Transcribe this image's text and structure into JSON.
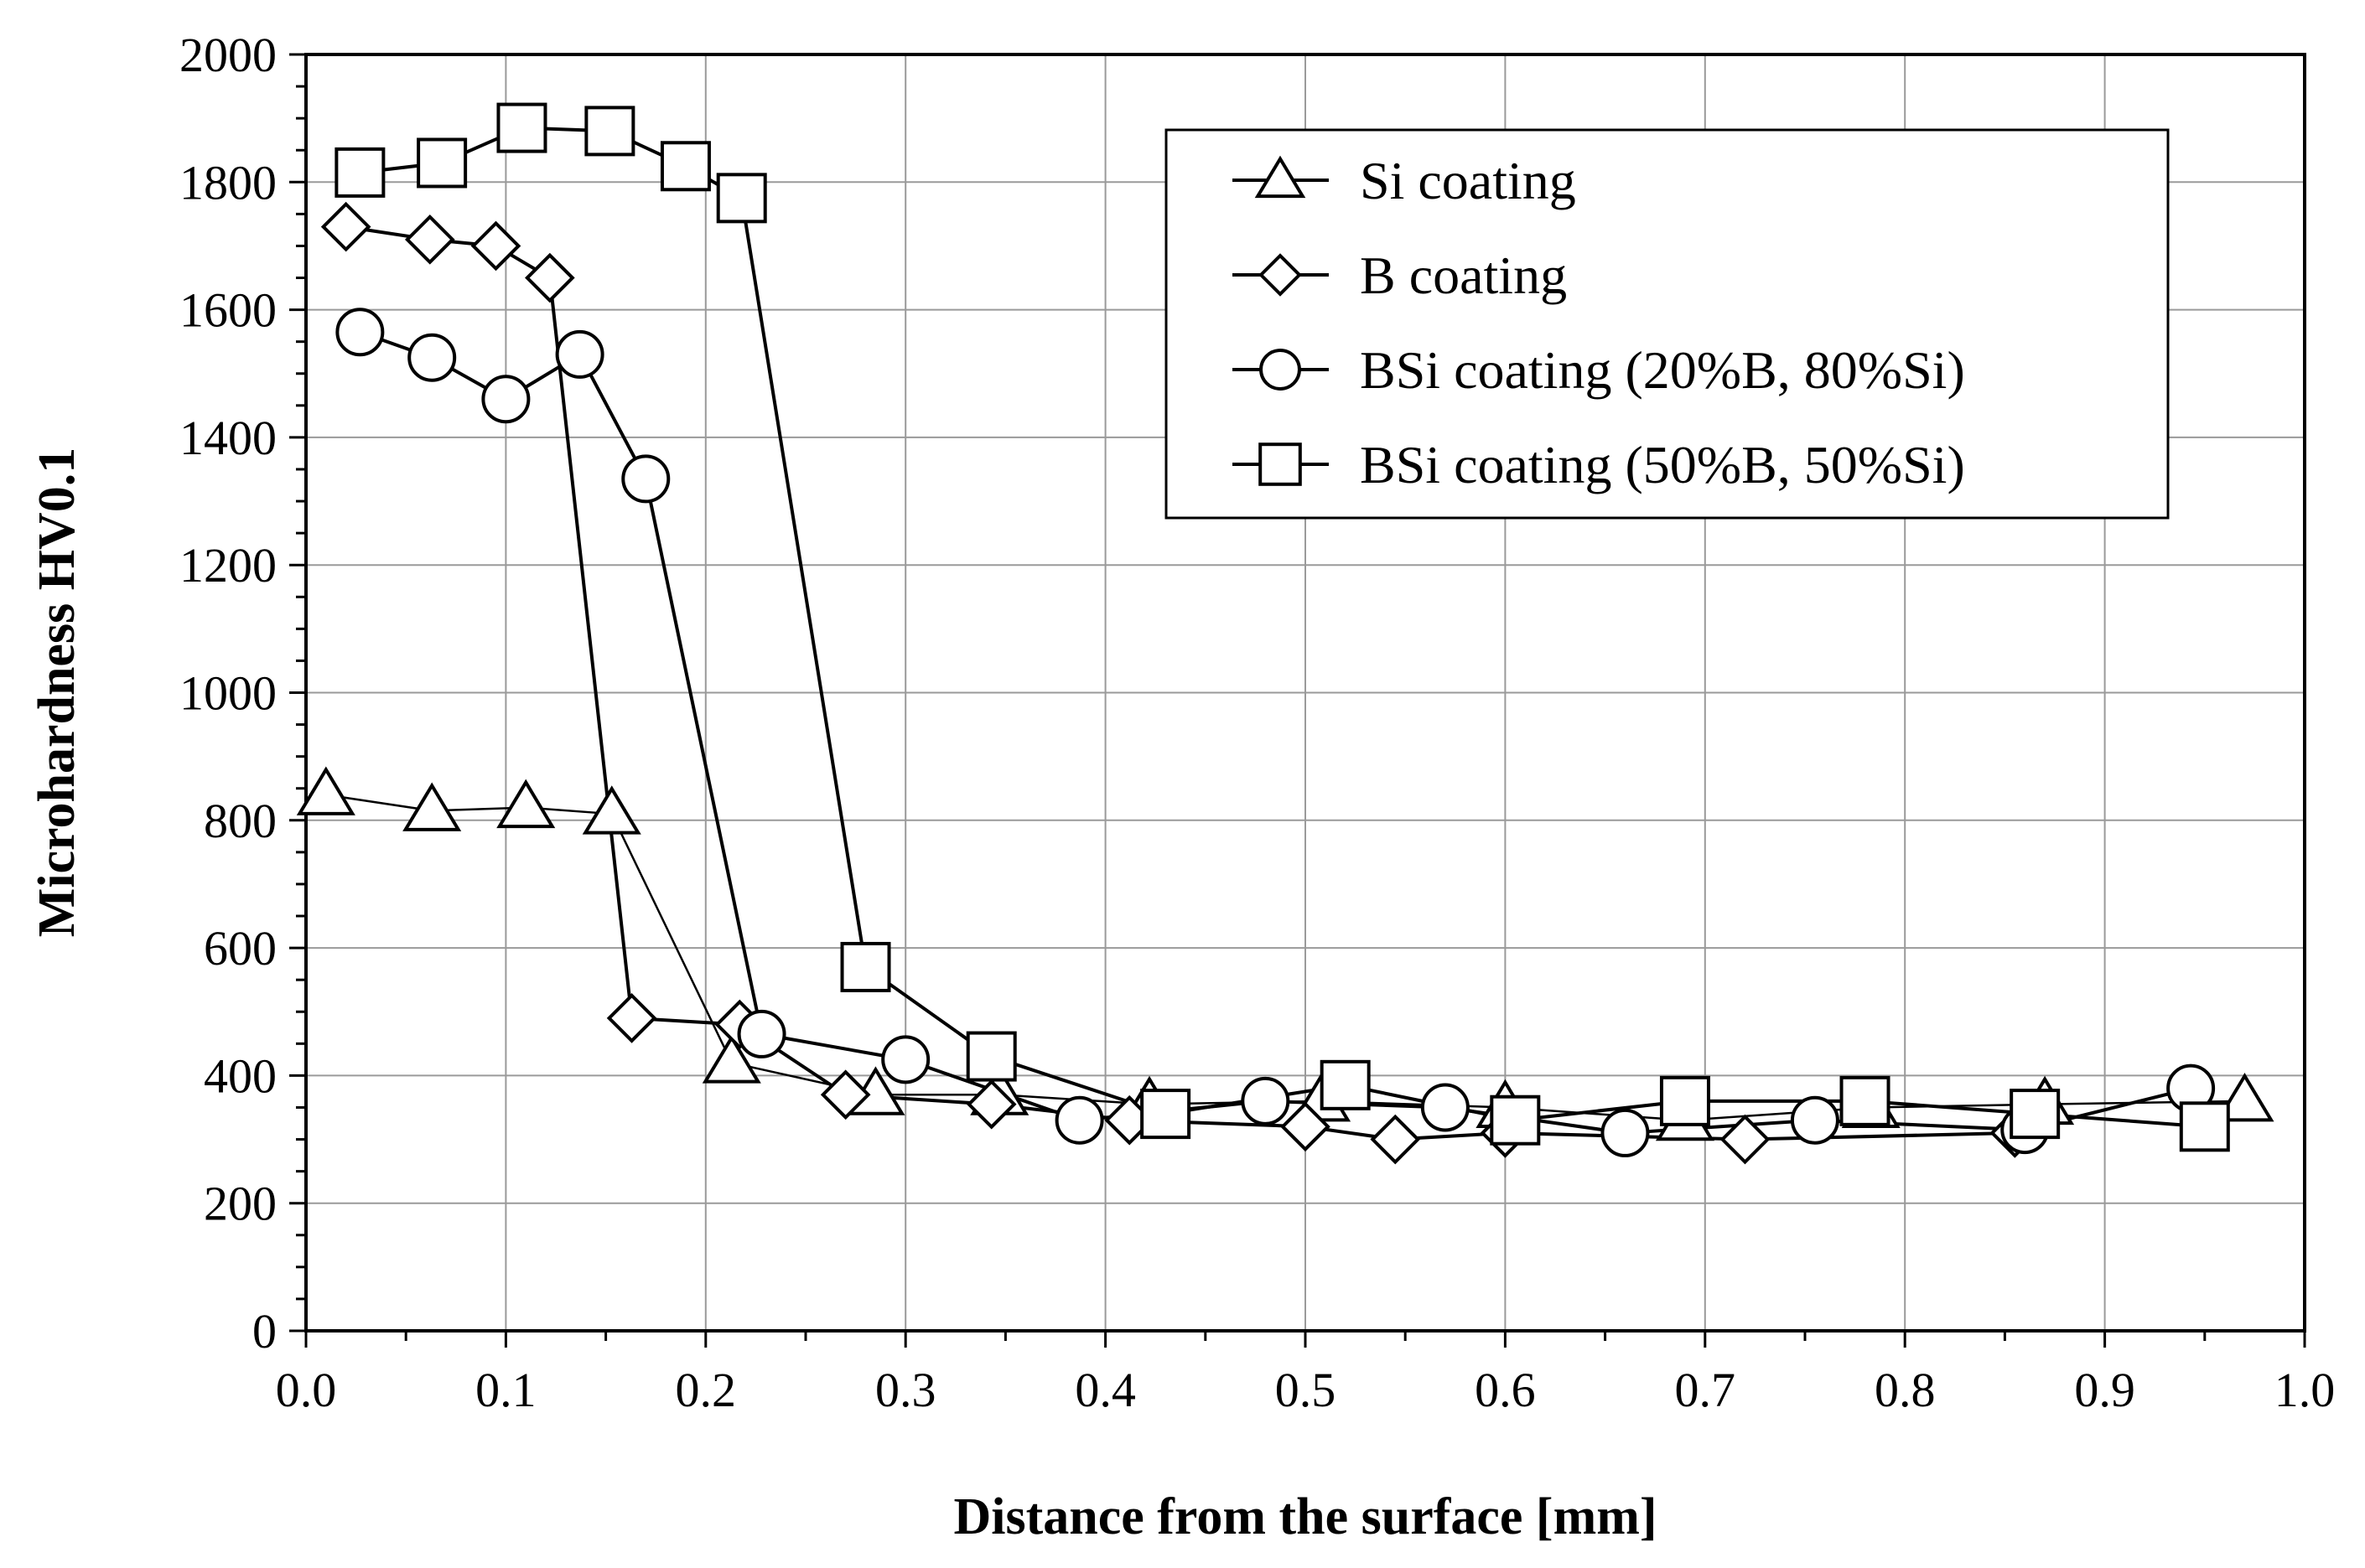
{
  "chart_data": {
    "type": "line",
    "title": "",
    "xlabel": "Distance from the surface [mm]",
    "ylabel": "Microhardness HV0.1",
    "xlim": [
      0.0,
      1.0
    ],
    "ylim": [
      0,
      2000
    ],
    "x_ticks": [
      "0.0",
      "0.1",
      "0.2",
      "0.3",
      "0.4",
      "0.5",
      "0.6",
      "0.7",
      "0.8",
      "0.9",
      "1.0"
    ],
    "y_ticks": [
      "0",
      "200",
      "400",
      "600",
      "800",
      "1000",
      "1200",
      "1400",
      "1600",
      "1800",
      "2000"
    ],
    "grid": true,
    "legend_position": "top-right",
    "series": [
      {
        "name": "Si coating",
        "marker": "triangle",
        "points": [
          [
            0.01,
            840
          ],
          [
            0.063,
            815
          ],
          [
            0.11,
            820
          ],
          [
            0.153,
            810
          ],
          [
            0.213,
            420
          ],
          [
            0.285,
            370
          ],
          [
            0.347,
            370
          ],
          [
            0.422,
            355
          ],
          [
            0.508,
            360
          ],
          [
            0.6,
            350
          ],
          [
            0.69,
            330
          ],
          [
            0.783,
            350
          ],
          [
            0.87,
            355
          ],
          [
            0.97,
            360
          ]
        ]
      },
      {
        "name": "B coating",
        "marker": "diamond",
        "points": [
          [
            0.02,
            1730
          ],
          [
            0.062,
            1710
          ],
          [
            0.095,
            1700
          ],
          [
            0.122,
            1650
          ],
          [
            0.163,
            490
          ],
          [
            0.217,
            480
          ],
          [
            0.27,
            370
          ],
          [
            0.343,
            355
          ],
          [
            0.412,
            330
          ],
          [
            0.5,
            320
          ],
          [
            0.545,
            300
          ],
          [
            0.6,
            310
          ],
          [
            0.72,
            300
          ],
          [
            0.855,
            310
          ]
        ]
      },
      {
        "name": "BSi coating (20%B, 80%Si)",
        "marker": "circle",
        "points": [
          [
            0.027,
            1565
          ],
          [
            0.063,
            1525
          ],
          [
            0.1,
            1460
          ],
          [
            0.137,
            1530
          ],
          [
            0.17,
            1335
          ],
          [
            0.228,
            465
          ],
          [
            0.3,
            425
          ],
          [
            0.387,
            330
          ],
          [
            0.48,
            360
          ],
          [
            0.57,
            350
          ],
          [
            0.66,
            310
          ],
          [
            0.755,
            330
          ],
          [
            0.86,
            315
          ],
          [
            0.943,
            380
          ]
        ]
      },
      {
        "name": "BSi coating (50%B, 50%Si)",
        "marker": "square",
        "points": [
          [
            0.027,
            1815
          ],
          [
            0.068,
            1830
          ],
          [
            0.108,
            1885
          ],
          [
            0.152,
            1880
          ],
          [
            0.19,
            1825
          ],
          [
            0.218,
            1775
          ],
          [
            0.28,
            570
          ],
          [
            0.343,
            430
          ],
          [
            0.43,
            340
          ],
          [
            0.52,
            385
          ],
          [
            0.605,
            330
          ],
          [
            0.69,
            360
          ],
          [
            0.78,
            360
          ],
          [
            0.865,
            340
          ],
          [
            0.95,
            320
          ]
        ]
      }
    ]
  }
}
